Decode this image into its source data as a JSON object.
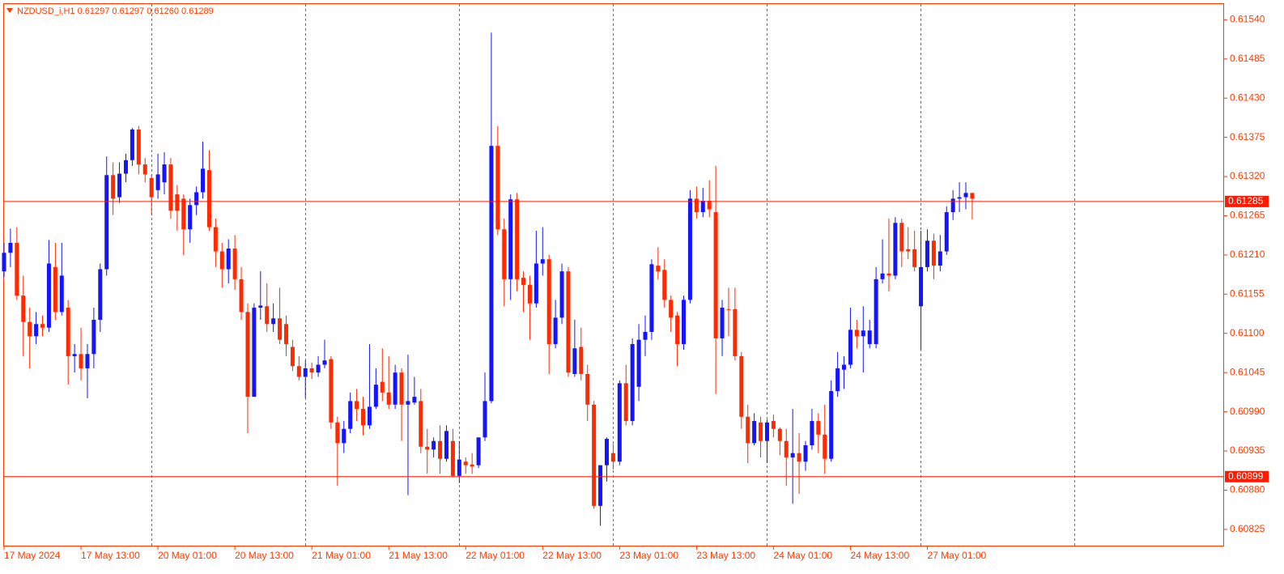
{
  "chart_data": {
    "type": "candlestick",
    "title": "NZDUSD_i,H1  0.61297 0.61297 0.61260 0.61289",
    "categories": [
      "17 May 2024",
      null,
      null,
      null,
      null,
      null,
      null,
      null,
      null,
      null,
      null,
      null,
      "17 May 13:00",
      null,
      null,
      null,
      null,
      null,
      null,
      null,
      null,
      null,
      null,
      null,
      "20 May 01:00",
      null,
      null,
      null,
      null,
      null,
      null,
      null,
      null,
      null,
      null,
      null,
      "20 May 13:00",
      null,
      null,
      null,
      null,
      null,
      null,
      null,
      null,
      null,
      null,
      null,
      "21 May 01:00",
      null,
      null,
      null,
      null,
      null,
      null,
      null,
      null,
      null,
      null,
      null,
      "21 May 13:00",
      null,
      null,
      null,
      null,
      null,
      null,
      null,
      null,
      null,
      null,
      null,
      "22 May 01:00",
      null,
      null,
      null,
      null,
      null,
      null,
      null,
      null,
      null,
      null,
      null,
      "22 May 13:00",
      null,
      null,
      null,
      null,
      null,
      null,
      null,
      null,
      null,
      null,
      null,
      "23 May 01:00",
      null,
      null,
      null,
      null,
      null,
      null,
      null,
      null,
      null,
      null,
      null,
      "23 May 13:00",
      null,
      null,
      null,
      null,
      null,
      null,
      null,
      null,
      null,
      null,
      null,
      "24 May 01:00",
      null,
      null,
      null,
      null,
      null,
      null,
      null,
      null,
      null,
      null,
      null,
      "24 May 13:00",
      null,
      null,
      null,
      null,
      null,
      null,
      null,
      null,
      null,
      null,
      null,
      "27 May 01:00",
      null,
      null,
      null,
      null,
      null,
      null,
      null
    ],
    "open": [
      0.61187,
      0.61213,
      0.61227,
      0.61153,
      0.61116,
      0.61096,
      0.61113,
      0.61108,
      0.61193,
      0.6113,
      0.61136,
      0.61068,
      0.61071,
      0.61051,
      0.61071,
      0.61119,
      0.6119,
      0.61322,
      0.61291,
      0.61324,
      0.61343,
      0.61386,
      0.61337,
      0.61318,
      0.61301,
      0.61312,
      0.61337,
      0.61295,
      0.61289,
      0.61246,
      0.6128,
      0.61298,
      0.61329,
      0.61249,
      0.61215,
      0.6119,
      0.61219,
      0.61176,
      0.6113,
      0.61011,
      0.61136,
      0.61138,
      0.61113,
      0.61121,
      0.61113,
      0.61081,
      0.61054,
      0.61039,
      0.61051,
      0.61045,
      0.61056,
      0.61064,
      0.60975,
      0.60946,
      0.60966,
      0.61005,
      0.60994,
      0.60971,
      0.60997,
      0.61032,
      0.61017,
      0.61,
      0.61045,
      0.61,
      0.61003,
      0.61005,
      0.60941,
      0.60937,
      0.60949,
      0.60924,
      0.60949,
      0.609,
      0.6092,
      0.60916,
      0.60915,
      0.60954,
      0.61005,
      0.61363,
      0.61246,
      0.61176,
      0.61288,
      0.61178,
      0.61168,
      0.61142,
      0.61198,
      0.61204,
      0.61085,
      0.61122,
      0.61187,
      0.61043,
      0.61081,
      0.61043,
      0.61,
      0.60858,
      0.60915,
      0.60932,
      0.6092,
      0.6103,
      0.60977,
      0.61025,
      0.61091,
      0.61102,
      0.61195,
      0.61189,
      0.61147,
      0.61125,
      0.61085,
      0.61147,
      0.61289,
      0.6127,
      0.61286,
      0.6127,
      0.61093,
      0.61134,
      0.61134,
      0.61068,
      0.60983,
      0.60946,
      0.60975,
      0.60949,
      0.60977,
      0.60966,
      0.60949,
      0.60926,
      0.60932,
      0.6092,
      0.60943,
      0.60977,
      0.60958,
      0.60924,
      0.61019,
      0.61049,
      0.61056,
      0.61105,
      0.61096,
      0.61085,
      0.61085,
      0.61176,
      0.61184,
      0.61181,
      0.61255,
      0.61218,
      0.61218,
      0.61138,
      0.61193,
      0.6123,
      0.61195,
      0.61215,
      0.6127,
      0.61289,
      0.61291,
      0.61297
    ],
    "high": [
      0.61227,
      0.61247,
      0.61249,
      0.61181,
      0.61136,
      0.6113,
      0.61125,
      0.61231,
      0.61227,
      0.61227,
      0.61147,
      0.61085,
      0.61108,
      0.61085,
      0.61136,
      0.61198,
      0.61348,
      0.6134,
      0.6134,
      0.61352,
      0.61388,
      0.61391,
      0.61346,
      0.61323,
      0.61352,
      0.61354,
      0.61346,
      0.61308,
      0.61295,
      0.61289,
      0.61306,
      0.61369,
      0.61357,
      0.61261,
      0.61227,
      0.61232,
      0.61238,
      0.61193,
      0.61142,
      0.61142,
      0.61187,
      0.6117,
      0.61142,
      0.61164,
      0.61125,
      0.61091,
      0.61068,
      0.61062,
      0.61059,
      0.61068,
      0.61091,
      0.61068,
      0.60983,
      0.60977,
      0.61017,
      0.61022,
      0.61011,
      0.61085,
      0.61051,
      0.61079,
      0.61068,
      0.61056,
      0.61051,
      0.6107,
      0.61039,
      0.61022,
      0.60966,
      0.60954,
      0.60971,
      0.60971,
      0.60966,
      0.60949,
      0.60926,
      0.60932,
      0.60954,
      0.61045,
      0.61522,
      0.61391,
      0.61261,
      0.61295,
      0.61297,
      0.61187,
      0.61181,
      0.61244,
      0.61249,
      0.6121,
      0.61147,
      0.61198,
      0.61193,
      0.61119,
      0.61108,
      0.61056,
      0.61005,
      0.60915,
      0.60954,
      0.60945,
      0.61034,
      0.61056,
      0.61093,
      0.61113,
      0.61125,
      0.61204,
      0.61221,
      0.61204,
      0.61153,
      0.6113,
      0.61153,
      0.61301,
      0.61306,
      0.61304,
      0.61315,
      0.61335,
      0.61147,
      0.61164,
      0.61164,
      0.61074,
      0.61,
      0.60988,
      0.60983,
      0.60979,
      0.60986,
      0.60968,
      0.60966,
      0.60994,
      0.6096,
      0.60949,
      0.60994,
      0.60988,
      0.61,
      0.61034,
      0.61074,
      0.61068,
      0.61136,
      0.61119,
      0.61138,
      0.61119,
      0.61193,
      0.61232,
      0.61261,
      0.61263,
      0.61261,
      0.61249,
      0.61244,
      0.61244,
      0.61246,
      0.6124,
      0.61238,
      0.61278,
      0.61301,
      0.61312,
      0.61312,
      0.61297
    ],
    "low": [
      0.61179,
      0.61193,
      0.61147,
      0.61068,
      0.61051,
      0.61085,
      0.61096,
      0.61102,
      0.61119,
      0.61125,
      0.61028,
      0.61045,
      0.61034,
      0.61009,
      0.61051,
      0.61102,
      0.61181,
      0.61266,
      0.61283,
      0.61312,
      0.61335,
      0.61323,
      0.61312,
      0.61266,
      0.61289,
      0.61295,
      0.61261,
      0.61244,
      0.6121,
      0.61227,
      0.61266,
      0.61289,
      0.61244,
      0.61193,
      0.61164,
      0.6117,
      0.61161,
      0.61119,
      0.6096,
      0.61011,
      0.61119,
      0.61102,
      0.61102,
      0.61085,
      0.61068,
      0.61047,
      0.61034,
      0.61009,
      0.61036,
      0.61039,
      0.61051,
      0.60966,
      0.60886,
      0.60932,
      0.6096,
      0.60977,
      0.60957,
      0.60966,
      0.60994,
      0.61005,
      0.60994,
      0.60994,
      0.60949,
      0.60873,
      0.61,
      0.60932,
      0.60903,
      0.60926,
      0.60903,
      0.6092,
      0.60898,
      0.6089,
      0.60903,
      0.60903,
      0.60911,
      0.60949,
      0.61002,
      0.61238,
      0.61138,
      0.61147,
      0.61159,
      0.6113,
      0.61091,
      0.61136,
      0.61181,
      0.61043,
      0.61079,
      0.61113,
      0.61039,
      0.61039,
      0.61034,
      0.60977,
      0.60854,
      0.6083,
      0.60892,
      0.60909,
      0.60915,
      0.60971,
      0.60971,
      0.61005,
      0.61068,
      0.61091,
      0.61176,
      0.61136,
      0.61102,
      0.61054,
      0.61077,
      0.61142,
      0.61261,
      0.61263,
      0.61263,
      0.61015,
      0.61068,
      0.61096,
      0.61062,
      0.60966,
      0.60918,
      0.60943,
      0.60926,
      0.60918,
      0.60954,
      0.60929,
      0.60886,
      0.60861,
      0.60875,
      0.60907,
      0.60937,
      0.60932,
      0.60903,
      0.6092,
      0.61011,
      0.61022,
      0.61051,
      0.61079,
      0.61045,
      0.61079,
      0.61079,
      0.6117,
      0.61159,
      0.61176,
      0.61193,
      0.61204,
      0.61187,
      0.61077,
      0.61187,
      0.61176,
      0.61187,
      0.6121,
      0.61259,
      0.6127,
      0.61274,
      0.6126
    ],
    "close": [
      0.61213,
      0.61227,
      0.61153,
      0.61116,
      0.61096,
      0.61113,
      0.61108,
      0.61198,
      0.6113,
      0.61181,
      0.61068,
      0.61071,
      0.61051,
      0.61071,
      0.61119,
      0.6119,
      0.61322,
      0.61289,
      0.61324,
      0.61343,
      0.61386,
      0.61337,
      0.61323,
      0.61291,
      0.61323,
      0.61337,
      0.61272,
      0.61272,
      0.61246,
      0.6128,
      0.61298,
      0.61331,
      0.61249,
      0.61215,
      0.6119,
      0.61219,
      0.61176,
      0.6113,
      0.61011,
      0.61136,
      0.61139,
      0.61113,
      0.61121,
      0.61091,
      0.61085,
      0.61054,
      0.61039,
      0.61051,
      0.61045,
      0.61056,
      0.61062,
      0.60975,
      0.60946,
      0.60966,
      0.61005,
      0.60994,
      0.60971,
      0.60997,
      0.61028,
      0.61017,
      0.61,
      0.61045,
      0.61,
      0.61005,
      0.61011,
      0.60941,
      0.60937,
      0.60949,
      0.60924,
      0.60963,
      0.609,
      0.60923,
      0.60915,
      0.60913,
      0.60954,
      0.61005,
      0.61363,
      0.61246,
      0.61176,
      0.61288,
      0.61176,
      0.61168,
      0.61142,
      0.61198,
      0.61204,
      0.61085,
      0.61122,
      0.61187,
      0.61045,
      0.61079,
      0.61043,
      0.61,
      0.60858,
      0.60915,
      0.60952,
      0.6092,
      0.6103,
      0.60977,
      0.61085,
      0.61091,
      0.61102,
      0.61197,
      0.61187,
      0.61147,
      0.61122,
      0.61085,
      0.61147,
      0.61289,
      0.6127,
      0.61286,
      0.61274,
      0.61093,
      0.61136,
      0.61133,
      0.61068,
      0.60983,
      0.60946,
      0.60977,
      0.60949,
      0.60975,
      0.60966,
      0.60949,
      0.60926,
      0.60932,
      0.6092,
      0.60943,
      0.60977,
      0.60958,
      0.60924,
      0.61019,
      0.61051,
      0.61056,
      0.61105,
      0.61096,
      0.61104,
      0.61104,
      0.61176,
      0.61184,
      0.61181,
      0.61255,
      0.61215,
      0.61215,
      0.61193,
      0.61193,
      0.6123,
      0.61195,
      0.61215,
      0.6127,
      0.61289,
      0.61291,
      0.61297,
      0.61289
    ],
    "up_color": "#1414ff",
    "down_color": "#ff2a00",
    "axis_color": "#ff3c00",
    "ylim": [
      0.60801,
      0.61562
    ],
    "yticks": [
      {
        "value": 0.6154,
        "label": "0.61540"
      },
      0.61485,
      {
        "value": 0.6143,
        "label": "0.61430"
      },
      0.61375,
      {
        "value": 0.6132,
        "label": "0.61320"
      },
      0.61265,
      {
        "value": 0.6121,
        "label": "0.61210"
      },
      0.61155,
      {
        "value": 0.611,
        "label": "0.61100"
      },
      0.61045,
      {
        "value": 0.6099,
        "label": "0.60990"
      },
      0.60935,
      {
        "value": 0.6088,
        "label": "0.60880"
      },
      0.60825
    ],
    "hlines": [
      {
        "value": 0.61285,
        "color": "#ff1a00"
      },
      {
        "value": 0.60899,
        "color": "#ff1a00"
      }
    ],
    "grid": true
  }
}
